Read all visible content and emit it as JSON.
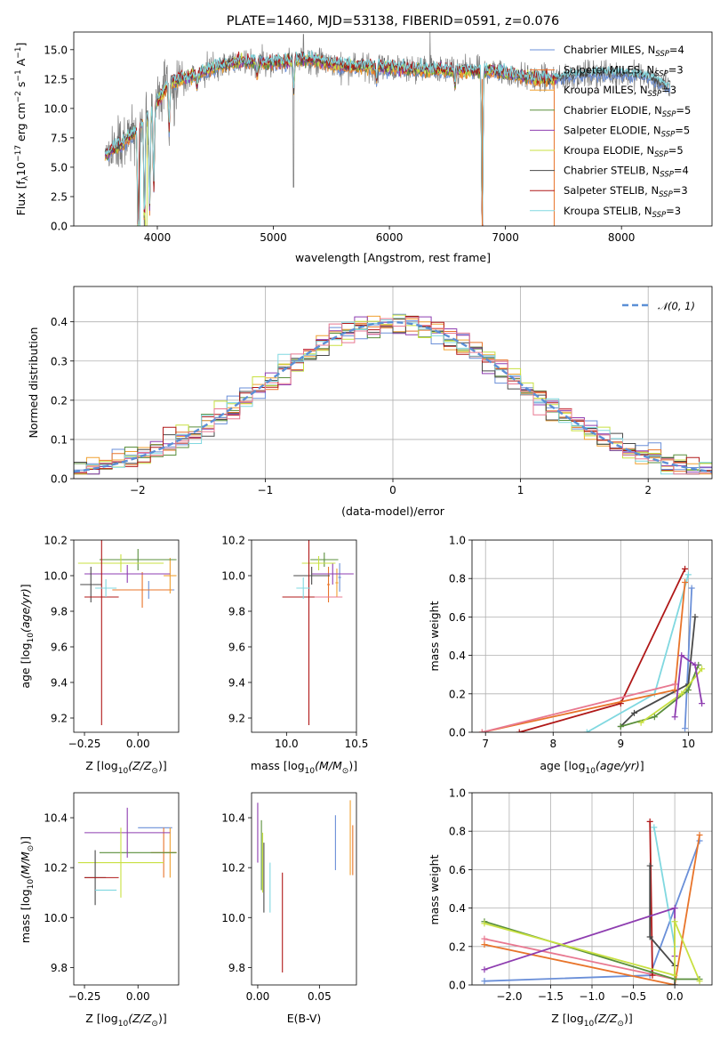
{
  "figure": {
    "title": "PLATE=1460, MJD=53138, FIBERID=0591, z=0.076",
    "colors": {
      "Chabrier MILES": "#6a8fd8",
      "Salpeter MILES": "#e8742a",
      "Kroupa MILES": "#f0a030",
      "Chabrier ELODIE": "#5a8f3c",
      "Salpeter ELODIE": "#8e3db0",
      "Kroupa ELODIE": "#c8e040",
      "Chabrier STELIB": "#4a4a4a",
      "Salpeter STELIB": "#b01818",
      "Kroupa STELIB": "#80d8e0",
      "data": "#7a7a7a",
      "normal": "#5b8fd6",
      "extra1": "#e87890"
    }
  },
  "chart_data": [
    {
      "id": "spectrum",
      "type": "line",
      "title": "PLATE=1460, MJD=53138, FIBERID=0591, z=0.076",
      "xlabel": "wavelength [Angstrom, rest frame]",
      "ylabel": "Flux [f_λ 10^-17 erg cm^-2 s^-1 A^-1]",
      "xlim": [
        3280,
        8780
      ],
      "ylim": [
        0,
        16.5
      ],
      "xticks": [
        4000,
        5000,
        6000,
        7000,
        8000
      ],
      "yticks": [
        0.0,
        2.5,
        5.0,
        7.5,
        10.0,
        12.5,
        15.0
      ],
      "legend_position": "top-right",
      "series": [
        {
          "name": "Chabrier MILES, N_SSP=4",
          "color_key": "Chabrier MILES"
        },
        {
          "name": "Salpeter MILES, N_SSP=3",
          "color_key": "Salpeter MILES"
        },
        {
          "name": "Kroupa MILES, N_SSP=3",
          "color_key": "Kroupa MILES"
        },
        {
          "name": "Chabrier ELODIE, N_SSP=5",
          "color_key": "Chabrier ELODIE"
        },
        {
          "name": "Salpeter ELODIE, N_SSP=5",
          "color_key": "Salpeter ELODIE"
        },
        {
          "name": "Kroupa ELODIE, N_SSP=5",
          "color_key": "Kroupa ELODIE"
        },
        {
          "name": "Chabrier STELIB, N_SSP=4",
          "color_key": "Chabrier STELIB"
        },
        {
          "name": "Salpeter STELIB, N_SSP=3",
          "color_key": "Salpeter STELIB"
        },
        {
          "name": "Kroupa STELIB, N_SSP=3",
          "color_key": "Kroupa STELIB"
        }
      ],
      "data_envelope": {
        "x": [
          3550,
          3700,
          3850,
          4000,
          4100,
          4300,
          4500,
          4700,
          5000,
          5300,
          5600,
          6000,
          6300,
          6600,
          6900,
          7200,
          7400,
          7600,
          7900,
          8200,
          8400
        ],
        "y": [
          6.0,
          7.0,
          8.5,
          10.5,
          12.2,
          12.8,
          13.5,
          14.0,
          13.9,
          14.2,
          13.6,
          13.5,
          13.3,
          13.2,
          13.2,
          12.6,
          12.5,
          12.8,
          13.0,
          12.8,
          11.8
        ]
      }
    },
    {
      "id": "residuals",
      "type": "bar",
      "xlabel": "(data-model)/error",
      "ylabel": "Normed distribution",
      "xlim": [
        -2.5,
        2.5
      ],
      "ylim": [
        0,
        0.49
      ],
      "xticks": [
        -2,
        -1,
        0,
        1,
        2
      ],
      "yticks": [
        0.0,
        0.1,
        0.2,
        0.3,
        0.4
      ],
      "legend_label": "𝒩(0, 1)",
      "legend_position": "top-right",
      "bin_width": 0.1,
      "bin_start": -2.5
    },
    {
      "id": "age_vs_Z",
      "type": "scatter",
      "xlabel": "Z [log10(Z/Z⊙)]",
      "ylabel": "age [log10(age/yr)]",
      "xlim": [
        -0.3,
        0.19
      ],
      "ylim": [
        9.12,
        10.2
      ],
      "xticks": [
        -0.25,
        0.0
      ],
      "yticks": [
        9.2,
        9.4,
        9.6,
        9.8,
        10.0,
        10.2
      ],
      "points": [
        {
          "key": "Chabrier MILES",
          "x": 0.05,
          "xerr": 0.12,
          "y": 9.92,
          "yerr": 0.05
        },
        {
          "key": "Salpeter MILES",
          "x": 0.02,
          "xerr": 0.14,
          "y": 9.92,
          "yerr": 0.1
        },
        {
          "key": "Kroupa MILES",
          "x": 0.15,
          "xerr": 0.03,
          "y": 10.0,
          "yerr": 0.1
        },
        {
          "key": "Chabrier ELODIE",
          "x": 0.0,
          "xerr": 0.18,
          "y": 10.09,
          "yerr": 0.06
        },
        {
          "key": "Salpeter ELODIE",
          "x": -0.05,
          "xerr": 0.2,
          "y": 10.01,
          "yerr": 0.05
        },
        {
          "key": "Kroupa ELODIE",
          "x": -0.08,
          "xerr": 0.2,
          "y": 10.07,
          "yerr": 0.05
        },
        {
          "key": "Chabrier STELIB",
          "x": -0.22,
          "xerr": 0.05,
          "y": 9.95,
          "yerr": 0.1
        },
        {
          "key": "Salpeter STELIB",
          "x": -0.17,
          "xerr": 0.08,
          "y": 9.88,
          "yerr": 0.72
        },
        {
          "key": "Kroupa STELIB",
          "x": -0.15,
          "xerr": 0.05,
          "y": 9.93,
          "yerr": 0.05
        }
      ]
    },
    {
      "id": "age_vs_mass",
      "type": "scatter",
      "xlabel": "mass [log10(M/M⊙)]",
      "xlim": [
        9.75,
        10.5
      ],
      "ylim": [
        9.12,
        10.2
      ],
      "xticks": [
        10.0,
        10.5
      ],
      "yticks": [
        9.2,
        9.4,
        9.6,
        9.8,
        10.0,
        10.2
      ],
      "points": [
        {
          "key": "Chabrier MILES",
          "x": 10.38,
          "xerr": 0.01,
          "y": 9.99,
          "yerr": 0.08
        },
        {
          "key": "Salpeter MILES",
          "x": 10.3,
          "xerr": 0.01,
          "y": 9.95,
          "yerr": 0.1
        },
        {
          "key": "Kroupa MILES",
          "x": 10.36,
          "xerr": 0.01,
          "y": 9.96,
          "yerr": 0.08
        },
        {
          "key": "Chabrier ELODIE",
          "x": 10.27,
          "xerr": 0.1,
          "y": 10.09,
          "yerr": 0.04
        },
        {
          "key": "Salpeter ELODIE",
          "x": 10.33,
          "xerr": 0.15,
          "y": 10.01,
          "yerr": 0.06
        },
        {
          "key": "Kroupa ELODIE",
          "x": 10.23,
          "xerr": 0.12,
          "y": 10.07,
          "yerr": 0.04
        },
        {
          "key": "Chabrier STELIB",
          "x": 10.18,
          "xerr": 0.13,
          "y": 10.0,
          "yerr": 0.05
        },
        {
          "key": "Salpeter STELIB",
          "x": 10.16,
          "xerr": 0.19,
          "y": 9.88,
          "yerr": 0.72
        },
        {
          "key": "Kroupa STELIB",
          "x": 10.12,
          "xerr": 0.05,
          "y": 9.93,
          "yerr": 0.06
        },
        {
          "key": "extra1",
          "x": 10.3,
          "xerr": 0.1,
          "y": 9.88,
          "yerr": 0.0
        }
      ]
    },
    {
      "id": "weight_vs_age",
      "type": "line",
      "xlabel": "age [log10(age/yr)]",
      "ylabel": "mass weight",
      "xlim": [
        6.8,
        10.35
      ],
      "ylim": [
        0,
        1.0
      ],
      "xticks": [
        7,
        8,
        9,
        10
      ],
      "yticks": [
        0.0,
        0.2,
        0.4,
        0.6,
        0.8,
        1.0
      ],
      "series": [
        {
          "key": "Salpeter STELIB",
          "x": [
            7.5,
            9.0,
            9.95
          ],
          "y": [
            0.0,
            0.15,
            0.85
          ]
        },
        {
          "key": "Kroupa STELIB",
          "x": [
            8.5,
            9.5,
            10.0
          ],
          "y": [
            0.0,
            0.2,
            0.82
          ]
        },
        {
          "key": "Chabrier MILES",
          "x": [
            9.95,
            10.05
          ],
          "y": [
            0.02,
            0.75
          ]
        },
        {
          "key": "Chabrier STELIB",
          "x": [
            9.0,
            9.2,
            10.0,
            10.1
          ],
          "y": [
            0.03,
            0.1,
            0.25,
            0.6
          ]
        },
        {
          "key": "Salpeter MILES",
          "x": [
            6.95,
            9.8,
            9.95
          ],
          "y": [
            0.0,
            0.22,
            0.78
          ]
        },
        {
          "key": "extra1",
          "x": [
            6.95,
            9.8
          ],
          "y": [
            0.0,
            0.25
          ]
        },
        {
          "key": "Chabrier ELODIE",
          "x": [
            9.0,
            9.5,
            10.0,
            10.15
          ],
          "y": [
            0.03,
            0.08,
            0.22,
            0.35
          ]
        },
        {
          "key": "Kroupa ELODIE",
          "x": [
            9.3,
            9.9,
            10.2
          ],
          "y": [
            0.05,
            0.2,
            0.33
          ]
        },
        {
          "key": "Salpeter ELODIE",
          "x": [
            9.8,
            9.9,
            10.1,
            10.2
          ],
          "y": [
            0.08,
            0.4,
            0.35,
            0.15
          ]
        }
      ]
    },
    {
      "id": "mass_vs_Z",
      "type": "scatter",
      "xlabel": "Z [log10(Z/Z⊙)]",
      "ylabel": "mass [log10(M/M⊙)]",
      "xlim": [
        -0.3,
        0.19
      ],
      "ylim": [
        9.73,
        10.5
      ],
      "xticks": [
        -0.25,
        0.0
      ],
      "yticks": [
        9.8,
        10.0,
        10.2,
        10.4
      ],
      "points": [
        {
          "key": "Chabrier MILES",
          "x": 0.08,
          "xerr": 0.08,
          "y": 10.36,
          "yerr": 0.0
        },
        {
          "key": "Salpeter MILES",
          "x": 0.12,
          "xerr": 0.06,
          "y": 10.26,
          "yerr": 0.1
        },
        {
          "key": "Kroupa MILES",
          "x": 0.15,
          "xerr": 0.03,
          "y": 10.26,
          "yerr": 0.1
        },
        {
          "key": "Chabrier ELODIE",
          "x": 0.0,
          "xerr": 0.18,
          "y": 10.26,
          "yerr": 0.0
        },
        {
          "key": "Salpeter ELODIE",
          "x": -0.05,
          "xerr": 0.2,
          "y": 10.34,
          "yerr": 0.1
        },
        {
          "key": "Kroupa ELODIE",
          "x": -0.08,
          "xerr": 0.2,
          "y": 10.22,
          "yerr": 0.14
        },
        {
          "key": "Chabrier STELIB",
          "x": -0.2,
          "xerr": 0.05,
          "y": 10.16,
          "yerr": 0.11
        },
        {
          "key": "Salpeter STELIB",
          "x": -0.17,
          "xerr": 0.08,
          "y": 10.16,
          "yerr": 0.0
        },
        {
          "key": "Kroupa STELIB",
          "x": -0.15,
          "xerr": 0.05,
          "y": 10.11,
          "yerr": 0.0
        }
      ]
    },
    {
      "id": "mass_vs_ebv",
      "type": "scatter",
      "xlabel": "E(B-V)",
      "xlim": [
        -0.005,
        0.08
      ],
      "ylim": [
        9.73,
        10.5
      ],
      "xticks": [
        0.0,
        0.05
      ],
      "yticks": [
        9.8,
        10.0,
        10.2,
        10.4
      ],
      "points": [
        {
          "key": "Chabrier MILES",
          "x": 0.063,
          "xerr": 0.0,
          "y": 10.3,
          "yerr": 0.11
        },
        {
          "key": "Salpeter MILES",
          "x": 0.077,
          "xerr": 0.0,
          "y": 10.27,
          "yerr": 0.1
        },
        {
          "key": "Kroupa MILES",
          "x": 0.075,
          "xerr": 0.0,
          "y": 10.32,
          "yerr": 0.15
        },
        {
          "key": "Chabrier ELODIE",
          "x": 0.003,
          "xerr": 0.0,
          "y": 10.25,
          "yerr": 0.14
        },
        {
          "key": "Salpeter ELODIE",
          "x": 0.0,
          "xerr": 0.0,
          "y": 10.34,
          "yerr": 0.12
        },
        {
          "key": "Kroupa ELODIE",
          "x": 0.004,
          "xerr": 0.0,
          "y": 10.22,
          "yerr": 0.12
        },
        {
          "key": "Chabrier STELIB",
          "x": 0.005,
          "xerr": 0.0,
          "y": 10.16,
          "yerr": 0.14
        },
        {
          "key": "Salpeter STELIB",
          "x": 0.02,
          "xerr": 0.0,
          "y": 9.98,
          "yerr": 0.2
        },
        {
          "key": "Kroupa STELIB",
          "x": 0.01,
          "xerr": 0.0,
          "y": 10.12,
          "yerr": 0.1
        }
      ]
    },
    {
      "id": "weight_vs_Z",
      "type": "line",
      "xlabel": "Z [log10(Z/Z⊙)]",
      "ylabel": "mass weight",
      "xlim": [
        -2.45,
        0.45
      ],
      "ylim": [
        0,
        1.0
      ],
      "xticks": [
        -2.0,
        -1.5,
        -1.0,
        -0.5,
        0.0
      ],
      "yticks": [
        0.0,
        0.2,
        0.4,
        0.6,
        0.8,
        1.0
      ],
      "series": [
        {
          "key": "Chabrier MILES",
          "x": [
            -2.3,
            -0.3,
            0.0,
            0.3
          ],
          "y": [
            0.02,
            0.05,
            0.4,
            0.75
          ]
        },
        {
          "key": "Salpeter MILES",
          "x": [
            -2.3,
            0.0,
            0.3
          ],
          "y": [
            0.21,
            0.0,
            0.78
          ]
        },
        {
          "key": "extra1",
          "x": [
            -2.3,
            0.0
          ],
          "y": [
            0.24,
            0.03
          ]
        },
        {
          "key": "Salpeter STELIB",
          "x": [
            -0.3,
            -0.27
          ],
          "y": [
            0.85,
            0.05
          ]
        },
        {
          "key": "Kroupa STELIB",
          "x": [
            -0.25,
            0.0
          ],
          "y": [
            0.82,
            0.2
          ]
        },
        {
          "key": "Chabrier STELIB",
          "x": [
            -0.3,
            -0.3,
            0.0,
            0.0
          ],
          "y": [
            0.62,
            0.25,
            0.1,
            0.0
          ]
        },
        {
          "key": "Salpeter ELODIE",
          "x": [
            -2.3,
            0.0,
            0.0
          ],
          "y": [
            0.08,
            0.4,
            0.15
          ]
        },
        {
          "key": "Chabrier ELODIE",
          "x": [
            -2.3,
            0.0,
            0.3
          ],
          "y": [
            0.33,
            0.03,
            0.03
          ]
        },
        {
          "key": "Kroupa ELODIE",
          "x": [
            -2.3,
            0.0,
            0.0,
            0.3
          ],
          "y": [
            0.32,
            0.05,
            0.33,
            0.02
          ]
        }
      ]
    }
  ]
}
